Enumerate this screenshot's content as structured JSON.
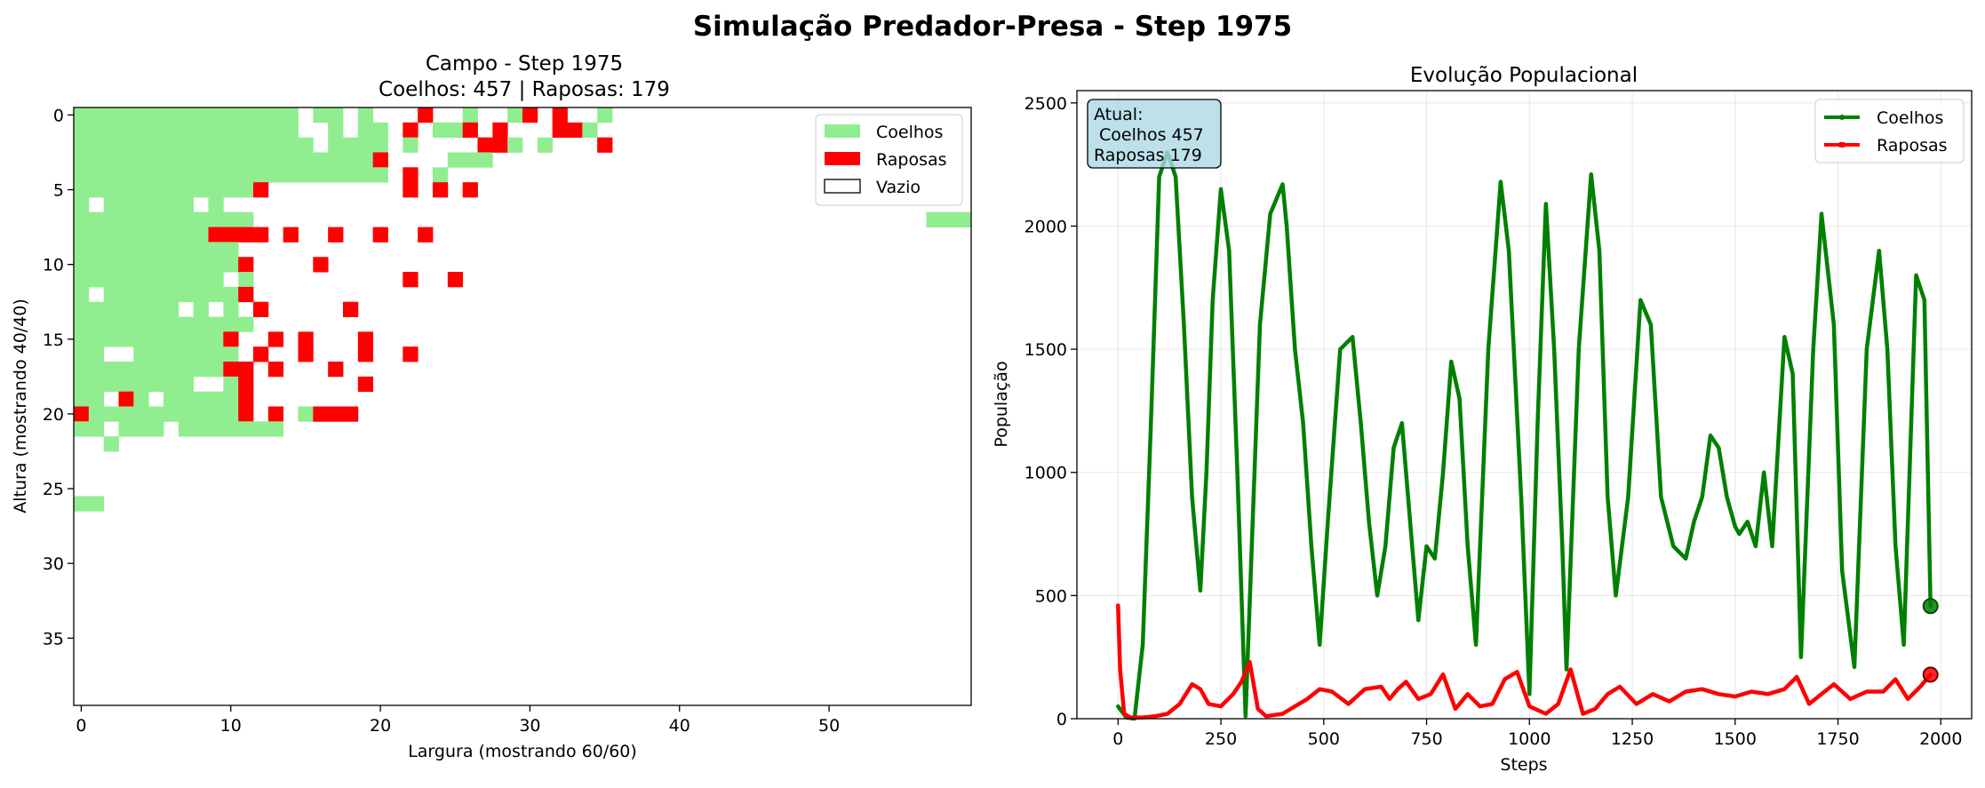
{
  "figure": {
    "title": "Simulação Predador-Presa - Step 1975"
  },
  "chart_data": [
    {
      "type": "heatmap",
      "title_line1": "Campo - Step 1975",
      "title_line2": "Coelhos: 457 |  Raposas: 179",
      "xlabel": "Largura (mostrando 60/60)",
      "ylabel": "Altura (mostrando 40/40)",
      "width": 60,
      "height": 40,
      "xticks": [
        0,
        10,
        20,
        30,
        40,
        50
      ],
      "yticks": [
        0,
        5,
        10,
        15,
        20,
        25,
        30,
        35
      ],
      "legend": {
        "position": "top-right",
        "items": [
          {
            "label": "Coelhos",
            "color": "#90ee90"
          },
          {
            "label": "Raposas",
            "color": "#ff0000"
          },
          {
            "label": "Vazio",
            "color": "#ffffff"
          }
        ]
      },
      "encoding": "R = rabbit (Coelhos), F = fox (Raposas), . = empty (Vazio); one string per row, row 0 at top",
      "grid": [
        "RRRRRRRRRRRRRRR.RR.R...F..R..RF.F..R.........................",
        "RRRRRRRRRRRRRRR..R.RR.F.RRF.F...FFR..........................",
        "RRRRRRRRRRRRRRRR.RRRR.R....FFR.R...F..........................",
        "RRRRRRRRRRRRRRRRRRRRF....RRR..........................",
        "RRRRRRRRRRRRRRRRRRRRR.F.R.........................",
        "RRRRRRRRRRRRF.........F.F.F..................................",
        "R.RRRRRR.R..................................................",
        "RRRRRRRRRRRR.............................................RRRR",
        "RRRRRRRRRFFFF.F..F..F..F....................................",
        "RRRRRRRRRRR.................................................",
        "RRRRRRRRRRRF....F...........................................",
        "RRRRRRRRRR.R..........F..F..................................",
        "R.RRRRRRRRRF................................................",
        "RRRRRRR.R.R.F.....F.............................................",
        "RRRRRRRRRRRR................................................",
        "RRRRRRRRRRF..F.F...F................................................",
        "RR..RRRRRRR.F..F...F..F.........................................",
        "RRRRRRRRRRFF.F...F..........................................",
        "RRRRRRRR..RF.......F........................................",
        "RR.FR.RRRRRF................................................",
        "FRRRRRRRRRRF.F.RFFF.........................................",
        "RR.RRR.RRRRRRR..............................................",
        "..R..................................................",
        ".................................................................",
        "...........................................................",
        "......................................................",
        "RR..........................................................",
        "............................................................",
        "............................................................",
        "............................................................",
        "............................................................",
        "............................................................",
        "............................................................",
        "............................................................",
        "............................................................",
        "............................................................",
        "............................................................",
        "............................................................",
        "............................................................",
        "............................................................"
      ]
    },
    {
      "type": "line",
      "title": "Evolução Populacional",
      "xlabel": "Steps",
      "ylabel": "População",
      "xlim": [
        -100,
        2075
      ],
      "ylim": [
        0,
        2550
      ],
      "xticks": [
        0,
        250,
        500,
        750,
        1000,
        1250,
        1500,
        1750,
        2000
      ],
      "yticks": [
        0,
        500,
        1000,
        1500,
        2000,
        2500
      ],
      "grid": true,
      "legend": {
        "position": "top-right",
        "items": [
          {
            "label": "Coelhos",
            "color": "#008000"
          },
          {
            "label": "Raposas",
            "color": "#ff0000"
          }
        ]
      },
      "annotation": {
        "position": "top-left",
        "lines": [
          "Atual:",
          " Coelhos 457",
          "Raposas 179"
        ]
      },
      "series": [
        {
          "name": "Coelhos",
          "color": "#008000",
          "x": [
            0,
            20,
            40,
            60,
            80,
            100,
            120,
            140,
            160,
            180,
            200,
            215,
            230,
            250,
            270,
            290,
            310,
            325,
            345,
            370,
            400,
            410,
            430,
            450,
            470,
            490,
            510,
            540,
            570,
            590,
            610,
            630,
            650,
            670,
            690,
            710,
            730,
            750,
            770,
            790,
            810,
            830,
            850,
            870,
            900,
            930,
            950,
            980,
            1000,
            1020,
            1040,
            1060,
            1080,
            1090,
            1120,
            1150,
            1170,
            1190,
            1210,
            1240,
            1270,
            1295,
            1320,
            1350,
            1380,
            1400,
            1420,
            1440,
            1460,
            1480,
            1500,
            1510,
            1530,
            1550,
            1570,
            1590,
            1620,
            1640,
            1660,
            1690,
            1710,
            1740,
            1760,
            1790,
            1820,
            1850,
            1870,
            1890,
            1910,
            1940,
            1960,
            1975
          ],
          "values": [
            50,
            5,
            0,
            300,
            1200,
            2200,
            2300,
            2200,
            1600,
            900,
            520,
            1000,
            1700,
            2150,
            1900,
            1000,
            10,
            700,
            1600,
            2050,
            2170,
            2000,
            1500,
            1200,
            700,
            300,
            800,
            1500,
            1550,
            1200,
            800,
            500,
            700,
            1100,
            1200,
            800,
            400,
            700,
            650,
            1000,
            1450,
            1300,
            700,
            300,
            1500,
            2180,
            1900,
            900,
            100,
            1200,
            2090,
            1500,
            700,
            200,
            1500,
            2210,
            1900,
            900,
            500,
            900,
            1700,
            1600,
            900,
            700,
            650,
            800,
            900,
            1150,
            1100,
            900,
            780,
            750,
            800,
            700,
            1000,
            700,
            1550,
            1400,
            250,
            1500,
            2050,
            1600,
            600,
            210,
            1500,
            1900,
            1500,
            700,
            300,
            1800,
            1700,
            457
          ]
        },
        {
          "name": "Raposas",
          "color": "#ff0000",
          "x": [
            0,
            5,
            15,
            30,
            60,
            90,
            120,
            150,
            180,
            200,
            220,
            250,
            280,
            300,
            320,
            340,
            360,
            400,
            430,
            460,
            490,
            520,
            560,
            600,
            640,
            660,
            680,
            700,
            730,
            760,
            790,
            820,
            850,
            880,
            910,
            940,
            970,
            1000,
            1040,
            1070,
            1100,
            1130,
            1160,
            1190,
            1220,
            1260,
            1300,
            1340,
            1380,
            1420,
            1460,
            1500,
            1540,
            1580,
            1620,
            1650,
            1680,
            1710,
            1740,
            1780,
            1820,
            1860,
            1890,
            1920,
            1950,
            1975
          ],
          "values": [
            460,
            200,
            20,
            5,
            5,
            10,
            20,
            60,
            140,
            120,
            60,
            50,
            100,
            150,
            230,
            40,
            10,
            20,
            50,
            80,
            120,
            110,
            60,
            120,
            130,
            80,
            120,
            150,
            80,
            100,
            180,
            40,
            100,
            50,
            60,
            160,
            190,
            50,
            20,
            60,
            200,
            20,
            40,
            100,
            130,
            60,
            100,
            70,
            110,
            120,
            100,
            90,
            110,
            100,
            120,
            170,
            60,
            100,
            140,
            80,
            110,
            110,
            160,
            80,
            130,
            179
          ]
        }
      ]
    }
  ]
}
